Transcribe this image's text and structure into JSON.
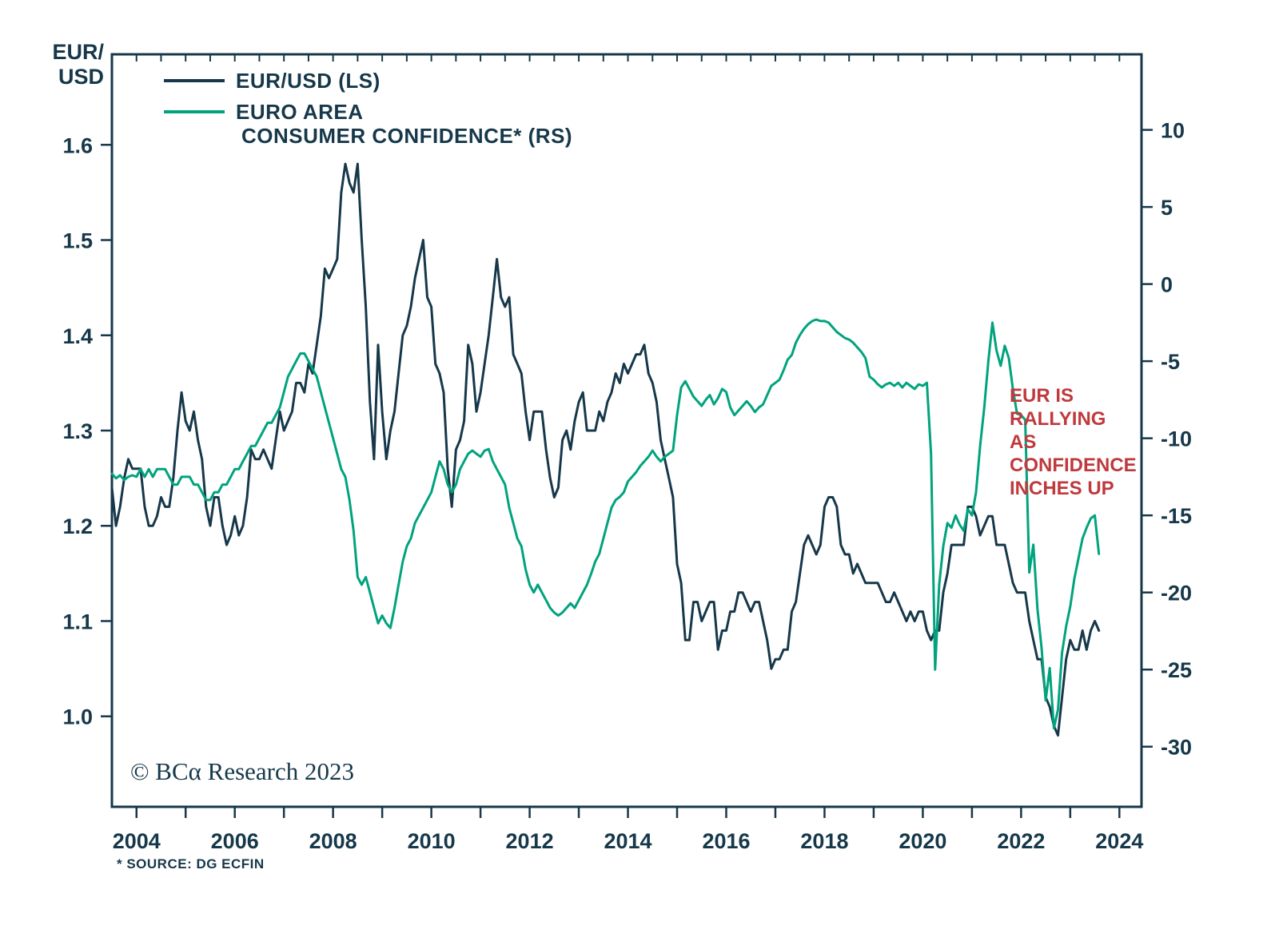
{
  "chart_data": {
    "type": "line",
    "ink_color": "#16384a",
    "left_axis": {
      "title": "EUR/\nUSD",
      "ticks": [
        1.6,
        1.5,
        1.4,
        1.3,
        1.2,
        1.1,
        1.0
      ],
      "range": [
        0.905,
        1.695
      ]
    },
    "right_axis": {
      "ticks": [
        10,
        5,
        0,
        -5,
        -10,
        -15,
        -20,
        -25,
        -30
      ],
      "range": [
        -33.9,
        14.9
      ]
    },
    "x_axis": {
      "labels": [
        2004,
        2006,
        2008,
        2010,
        2012,
        2014,
        2016,
        2018,
        2020,
        2022,
        2024
      ],
      "minor_tick_every_years": 1,
      "top_tick_every_years": 0.5,
      "range": [
        2003.5,
        2024.45
      ]
    },
    "legend": {
      "eurusd_label": "EUR/USD (LS)",
      "euro_area_line1": "EURO AREA",
      "euro_area_line2": "CONSUMER CONFIDENCE* (RS)"
    },
    "annotation": {
      "text": "EUR IS\nRALLYING\nAS\nCONFIDENCE\nINCHES UP",
      "color": "#bf393d"
    },
    "copyright": "© BCα Research 2023",
    "footnote": "* SOURCE: DG ECFIN",
    "series": [
      {
        "id": "eurusd-line",
        "name": "EUR/USD (LS)",
        "axis": "left",
        "color": "#16384a",
        "start_year": 2003.5,
        "points_per_year": 12,
        "values": [
          1.24,
          1.2,
          1.22,
          1.25,
          1.27,
          1.26,
          1.26,
          1.26,
          1.22,
          1.2,
          1.2,
          1.21,
          1.23,
          1.22,
          1.22,
          1.25,
          1.3,
          1.34,
          1.31,
          1.3,
          1.32,
          1.29,
          1.27,
          1.22,
          1.2,
          1.23,
          1.23,
          1.2,
          1.18,
          1.19,
          1.21,
          1.19,
          1.2,
          1.23,
          1.28,
          1.27,
          1.27,
          1.28,
          1.27,
          1.26,
          1.29,
          1.32,
          1.3,
          1.31,
          1.32,
          1.35,
          1.35,
          1.34,
          1.37,
          1.36,
          1.39,
          1.42,
          1.47,
          1.46,
          1.47,
          1.48,
          1.55,
          1.58,
          1.56,
          1.55,
          1.58,
          1.5,
          1.43,
          1.33,
          1.27,
          1.39,
          1.32,
          1.27,
          1.3,
          1.32,
          1.36,
          1.4,
          1.41,
          1.43,
          1.46,
          1.48,
          1.5,
          1.44,
          1.43,
          1.37,
          1.36,
          1.34,
          1.26,
          1.22,
          1.28,
          1.29,
          1.31,
          1.39,
          1.37,
          1.32,
          1.34,
          1.37,
          1.4,
          1.44,
          1.48,
          1.44,
          1.43,
          1.44,
          1.38,
          1.37,
          1.36,
          1.32,
          1.29,
          1.32,
          1.32,
          1.32,
          1.28,
          1.25,
          1.23,
          1.24,
          1.29,
          1.3,
          1.28,
          1.31,
          1.33,
          1.34,
          1.3,
          1.3,
          1.3,
          1.32,
          1.31,
          1.33,
          1.34,
          1.36,
          1.35,
          1.37,
          1.36,
          1.37,
          1.38,
          1.38,
          1.39,
          1.36,
          1.35,
          1.33,
          1.29,
          1.27,
          1.25,
          1.23,
          1.16,
          1.14,
          1.08,
          1.08,
          1.12,
          1.12,
          1.1,
          1.11,
          1.12,
          1.12,
          1.07,
          1.09,
          1.09,
          1.11,
          1.11,
          1.13,
          1.13,
          1.12,
          1.11,
          1.12,
          1.12,
          1.1,
          1.08,
          1.05,
          1.06,
          1.06,
          1.07,
          1.07,
          1.11,
          1.12,
          1.15,
          1.18,
          1.19,
          1.18,
          1.17,
          1.18,
          1.22,
          1.23,
          1.23,
          1.22,
          1.18,
          1.17,
          1.17,
          1.15,
          1.16,
          1.15,
          1.14,
          1.14,
          1.14,
          1.14,
          1.13,
          1.12,
          1.12,
          1.13,
          1.12,
          1.11,
          1.1,
          1.11,
          1.1,
          1.11,
          1.11,
          1.09,
          1.08,
          1.09,
          1.09,
          1.13,
          1.15,
          1.18,
          1.18,
          1.18,
          1.18,
          1.22,
          1.22,
          1.21,
          1.19,
          1.2,
          1.21,
          1.21,
          1.18,
          1.18,
          1.18,
          1.16,
          1.14,
          1.13,
          1.13,
          1.13,
          1.1,
          1.08,
          1.06,
          1.06,
          1.02,
          1.01,
          0.99,
          0.98,
          1.02,
          1.06,
          1.08,
          1.07,
          1.07,
          1.09,
          1.07,
          1.09,
          1.1,
          1.09
        ]
      },
      {
        "id": "confidence-line",
        "name": "EURO AREA CONSUMER CONFIDENCE* (RS)",
        "axis": "right",
        "color": "#00a37d",
        "start_year": 2003.5,
        "points_per_year": 12,
        "values": [
          -12.3,
          -12.6,
          -12.4,
          -12.7,
          -12.5,
          -12.4,
          -12.5,
          -12.0,
          -12.5,
          -12.0,
          -12.5,
          -12.0,
          -12.0,
          -12.0,
          -12.5,
          -13.0,
          -13.0,
          -12.5,
          -12.5,
          -12.5,
          -13.0,
          -13.0,
          -13.5,
          -14.0,
          -14.0,
          -13.5,
          -13.5,
          -13.0,
          -13.0,
          -12.5,
          -12.0,
          -12.0,
          -11.5,
          -11.0,
          -10.5,
          -10.5,
          -10.0,
          -9.5,
          -9.0,
          -9.0,
          -8.5,
          -8.0,
          -7.0,
          -6.0,
          -5.5,
          -5.0,
          -4.5,
          -4.5,
          -5.0,
          -5.5,
          -6.0,
          -7.0,
          -8.0,
          -9.0,
          -10.0,
          -11.0,
          -12.0,
          -12.5,
          -14.0,
          -16.0,
          -19.0,
          -19.5,
          -19.0,
          -20.0,
          -21.0,
          -22.0,
          -21.5,
          -22.0,
          -22.3,
          -21.0,
          -19.5,
          -18.0,
          -17.0,
          -16.5,
          -15.5,
          -15.0,
          -14.5,
          -14.0,
          -13.5,
          -12.5,
          -11.5,
          -12.0,
          -13.0,
          -13.5,
          -13.0,
          -12.0,
          -11.5,
          -11.0,
          -10.8,
          -11.0,
          -11.2,
          -10.8,
          -10.7,
          -11.5,
          -12.0,
          -12.5,
          -13.0,
          -14.5,
          -15.5,
          -16.5,
          -17.0,
          -18.5,
          -19.5,
          -20.0,
          -19.5,
          -20.0,
          -20.5,
          -21.0,
          -21.3,
          -21.5,
          -21.3,
          -21.0,
          -20.7,
          -21.0,
          -20.5,
          -20.0,
          -19.5,
          -18.8,
          -18.0,
          -17.5,
          -16.5,
          -15.5,
          -14.5,
          -14.0,
          -13.8,
          -13.5,
          -12.8,
          -12.5,
          -12.2,
          -11.8,
          -11.5,
          -11.2,
          -10.8,
          -11.2,
          -11.5,
          -11.2,
          -11.0,
          -10.8,
          -8.5,
          -6.7,
          -6.3,
          -6.8,
          -7.3,
          -7.6,
          -7.9,
          -7.5,
          -7.2,
          -7.8,
          -7.4,
          -6.8,
          -7.0,
          -8.0,
          -8.5,
          -8.2,
          -7.9,
          -7.6,
          -7.9,
          -8.3,
          -8.0,
          -7.8,
          -7.2,
          -6.6,
          -6.4,
          -6.2,
          -5.6,
          -4.9,
          -4.6,
          -3.8,
          -3.3,
          -2.9,
          -2.6,
          -2.4,
          -2.3,
          -2.4,
          -2.4,
          -2.5,
          -2.8,
          -3.1,
          -3.3,
          -3.5,
          -3.6,
          -3.8,
          -4.1,
          -4.4,
          -4.8,
          -6.0,
          -6.2,
          -6.5,
          -6.7,
          -6.5,
          -6.4,
          -6.6,
          -6.4,
          -6.7,
          -6.4,
          -6.6,
          -6.8,
          -6.5,
          -6.6,
          -6.4,
          -11.0,
          -25.0,
          -19.5,
          -17.0,
          -15.5,
          -15.8,
          -15.0,
          -15.6,
          -16.0,
          -14.6,
          -15.0,
          -13.5,
          -10.5,
          -8.0,
          -5.0,
          -2.5,
          -4.3,
          -5.3,
          -4.0,
          -4.8,
          -6.8,
          -8.4,
          -8.5,
          -8.8,
          -18.7,
          -16.9,
          -21.1,
          -23.6,
          -27.0,
          -24.9,
          -28.8,
          -27.6,
          -23.9,
          -22.2,
          -20.9,
          -19.1,
          -17.8,
          -16.5,
          -15.8,
          -15.2,
          -15.0,
          -17.5
        ]
      }
    ]
  }
}
